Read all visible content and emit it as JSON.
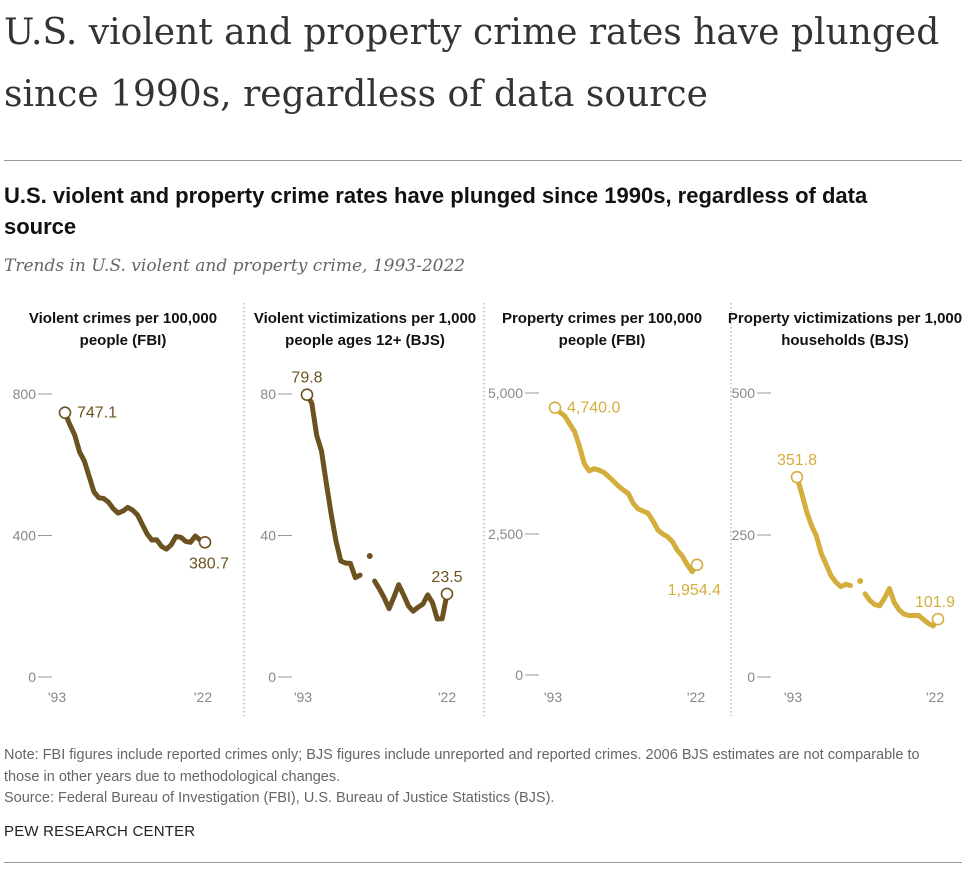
{
  "headline": "U.S. violent and property crime rates have plunged since 1990s, regardless of data source",
  "chart_title": "U.S. violent and property crime rates have plunged since 1990s, regardless of data source",
  "chart_subtitle": "Trends in U.S. violent and property crime, 1993-2022",
  "note": "Note: FBI figures include reported crimes only; BJS figures include unreported and reported crimes. 2006 BJS estimates are not comparable to those in other years due to methodological changes.",
  "source": "Source: Federal Bureau of Investigation (FBI), U.S. Bureau of Justice Statistics (BJS).",
  "brand": "PEW RESEARCH CENTER",
  "colors": {
    "violent": "#6b5220",
    "property": "#d4ae3c",
    "axis": "#999999",
    "tick_text": "#888888"
  },
  "chart_data": [
    {
      "type": "line",
      "title": "Violent crimes per 100,000 people (FBI)",
      "ylim": [
        0,
        800
      ],
      "yticks": [
        0,
        400,
        800
      ],
      "ytick_labels": [
        "0",
        "400",
        "800"
      ],
      "xtick_labels": [
        "'93",
        "'22"
      ],
      "x": [
        1993,
        1994,
        1995,
        1996,
        1997,
        1998,
        1999,
        2000,
        2001,
        2002,
        2003,
        2004,
        2005,
        2006,
        2007,
        2008,
        2009,
        2010,
        2011,
        2012,
        2013,
        2014,
        2015,
        2016,
        2017,
        2018,
        2019,
        2020,
        2021,
        2022
      ],
      "values": [
        747.1,
        713.6,
        684.5,
        636.6,
        611.0,
        567.6,
        523.0,
        506.5,
        504.5,
        494.4,
        475.8,
        463.2,
        469.0,
        479.3,
        471.8,
        458.6,
        431.9,
        404.5,
        387.1,
        387.8,
        369.1,
        361.6,
        373.7,
        397.5,
        394.9,
        383.4,
        380.8,
        398.5,
        387.0,
        380.7
      ],
      "labels": [
        {
          "index": 0,
          "text": "747.1"
        },
        {
          "index": 29,
          "text": "380.7"
        }
      ],
      "color": "#6b5220"
    },
    {
      "type": "line",
      "title": "Violent victimizations per 1,000 people ages 12+ (BJS)",
      "ylim": [
        0,
        80
      ],
      "yticks": [
        0,
        40,
        80
      ],
      "ytick_labels": [
        "0",
        "40",
        "80"
      ],
      "xtick_labels": [
        "'93",
        "'22"
      ],
      "x": [
        1993,
        1994,
        1995,
        1996,
        1997,
        1998,
        1999,
        2000,
        2001,
        2002,
        2003,
        2004,
        2005,
        2006,
        2007,
        2008,
        2009,
        2010,
        2011,
        2012,
        2013,
        2014,
        2015,
        2016,
        2017,
        2018,
        2019,
        2020,
        2021,
        2022
      ],
      "values": [
        79.8,
        77.4,
        68.3,
        63.9,
        54.8,
        46.2,
        38.4,
        32.8,
        32.2,
        32.1,
        28.1,
        28.8,
        28.3,
        34.2,
        27.1,
        24.9,
        22.4,
        19.3,
        22.6,
        26.1,
        23.2,
        20.1,
        18.6,
        19.7,
        20.6,
        23.2,
        21.0,
        16.4,
        16.5,
        23.5
      ],
      "gaps": [
        12,
        13
      ],
      "labels": [
        {
          "index": 0,
          "text": "79.8"
        },
        {
          "index": 29,
          "text": "23.5"
        }
      ],
      "color": "#6b5220"
    },
    {
      "type": "line",
      "title": "Property crimes per 100,000 people (FBI)",
      "ylim": [
        0,
        5000
      ],
      "yticks": [
        0,
        2500,
        5000
      ],
      "ytick_labels": [
        "0",
        "2,500",
        "5,000"
      ],
      "xtick_labels": [
        "'93",
        "'22"
      ],
      "x": [
        1993,
        1994,
        1995,
        1996,
        1997,
        1998,
        1999,
        2000,
        2001,
        2002,
        2003,
        2004,
        2005,
        2006,
        2007,
        2008,
        2009,
        2010,
        2011,
        2012,
        2013,
        2014,
        2015,
        2016,
        2017,
        2018,
        2019,
        2020,
        2021,
        2022
      ],
      "values": [
        4740.0,
        4660.2,
        4590.5,
        4451.0,
        4316.3,
        4052.5,
        3743.6,
        3618.3,
        3658.1,
        3630.6,
        3591.2,
        3514.1,
        3431.5,
        3346.6,
        3276.4,
        3214.6,
        3041.3,
        2945.9,
        2905.4,
        2868.0,
        2733.6,
        2574.1,
        2500.5,
        2451.6,
        2362.9,
        2209.8,
        2109.9,
        1958.2,
        1832.3,
        1954.4
      ],
      "labels": [
        {
          "index": 0,
          "text": "4,740.0"
        },
        {
          "index": 29,
          "text": "1,954.4"
        }
      ],
      "color": "#d4ae3c"
    },
    {
      "type": "line",
      "title": "Property victimizations per 1,000 households (BJS)",
      "ylim": [
        0,
        500
      ],
      "yticks": [
        0,
        250,
        500
      ],
      "ytick_labels": [
        "0",
        "250",
        "500"
      ],
      "xtick_labels": [
        "'93",
        "'22"
      ],
      "x": [
        1993,
        1994,
        1995,
        1996,
        1997,
        1998,
        1999,
        2000,
        2001,
        2002,
        2003,
        2004,
        2005,
        2006,
        2007,
        2008,
        2009,
        2010,
        2011,
        2012,
        2013,
        2014,
        2015,
        2016,
        2017,
        2018,
        2019,
        2020,
        2021,
        2022
      ],
      "values": [
        351.8,
        322.1,
        290.9,
        266.3,
        248.3,
        217.4,
        198.0,
        178.1,
        166.9,
        159.0,
        163.2,
        161.1,
        154.0,
        169.0,
        146.5,
        134.7,
        127.4,
        125.4,
        138.7,
        155.8,
        131.4,
        118.1,
        110.7,
        108.2,
        108.4,
        108.2,
        101.4,
        94.5,
        90.0,
        101.9
      ],
      "gaps": [
        12,
        13
      ],
      "labels": [
        {
          "index": 0,
          "text": "351.8"
        },
        {
          "index": 29,
          "text": "101.9"
        }
      ],
      "color": "#d4ae3c"
    }
  ]
}
